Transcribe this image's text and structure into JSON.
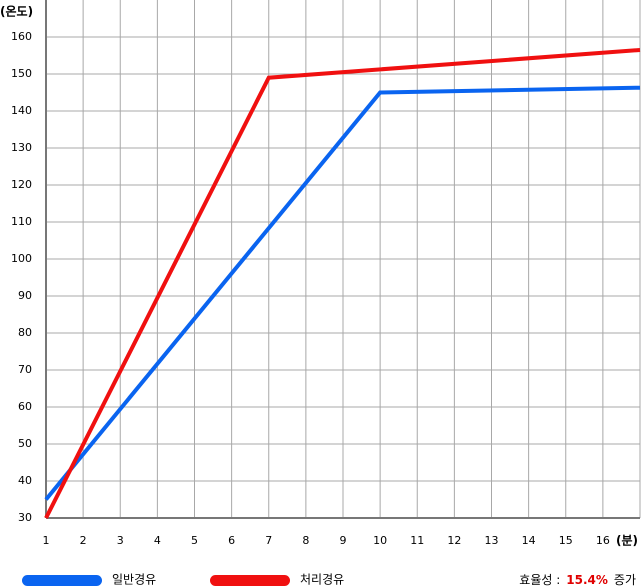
{
  "chart_data": {
    "type": "line",
    "ylabel": "(온도)",
    "xlabel": "(분)",
    "xlim": [
      1,
      17
    ],
    "xticks": [
      1,
      2,
      3,
      4,
      5,
      6,
      7,
      8,
      9,
      10,
      11,
      12,
      13,
      14,
      15,
      16
    ],
    "ylim": [
      30,
      170
    ],
    "yticks": [
      30,
      40,
      50,
      60,
      70,
      80,
      90,
      100,
      110,
      120,
      130,
      140,
      150,
      160
    ],
    "grid": true,
    "series": [
      {
        "name": "일반경유",
        "color": "#0a64f0",
        "x": [
          1,
          10,
          17
        ],
        "values": [
          35,
          145,
          146.3
        ]
      },
      {
        "name": "처리경유",
        "color": "#f01010",
        "x": [
          1,
          7,
          17
        ],
        "values": [
          30,
          149,
          156.5
        ]
      }
    ],
    "annotation": {
      "label": "효율성 :",
      "value": "15.4%",
      "suffix": "증가"
    }
  }
}
